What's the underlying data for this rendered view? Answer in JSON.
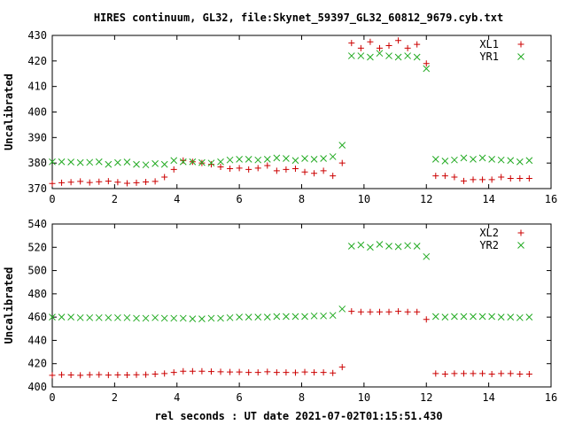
{
  "title": "HIRES continuum, GL32, file:Skynet_59397_GL32_60812_9679.cyb.txt",
  "xlabel": "rel seconds : UT date 2021-07-02T01:15:51.430",
  "colors": {
    "red": "#cc0000",
    "green": "#22aa22",
    "axis": "#000000"
  },
  "chart_data": [
    {
      "type": "scatter",
      "ylabel": "Uncalibrated",
      "xlim": [
        0,
        16
      ],
      "ylim": [
        370,
        430
      ],
      "xticks": [
        0,
        2,
        4,
        6,
        8,
        10,
        12,
        14,
        16
      ],
      "yticks": [
        370,
        380,
        390,
        400,
        410,
        420,
        430
      ],
      "legend": "top-right",
      "series": [
        {
          "name": "XL1",
          "marker": "plus",
          "color": "#cc0000",
          "x": [
            0,
            0.3,
            0.6,
            0.9,
            1.2,
            1.5,
            1.8,
            2.1,
            2.4,
            2.7,
            3.0,
            3.3,
            3.6,
            3.9,
            4.2,
            4.5,
            4.8,
            5.1,
            5.4,
            5.7,
            6.0,
            6.3,
            6.6,
            6.9,
            7.2,
            7.5,
            7.8,
            8.1,
            8.4,
            8.7,
            9.0,
            9.3,
            9.6,
            9.9,
            10.2,
            10.5,
            10.8,
            11.1,
            11.4,
            11.7,
            12.0,
            12.3,
            12.6,
            12.9,
            13.2,
            13.5,
            13.8,
            14.1,
            14.4,
            14.7,
            15.0,
            15.3
          ],
          "y": [
            372,
            372.3,
            372.5,
            372.8,
            372.4,
            372.7,
            372.9,
            372.5,
            372.1,
            372.3,
            372.6,
            372.8,
            374.5,
            377.5,
            381,
            380.5,
            380,
            379.5,
            378.5,
            377.8,
            378,
            377.5,
            378,
            379,
            377,
            377.5,
            377.8,
            376.5,
            376,
            377,
            375,
            380,
            427,
            425,
            427.5,
            425,
            426,
            428,
            425,
            426.5,
            419,
            375,
            375,
            374.5,
            373,
            373.5,
            373.5,
            373.5,
            374.5,
            374,
            374,
            374
          ],
          "legend_label": "XL1"
        },
        {
          "name": "YR1",
          "marker": "cross",
          "color": "#22aa22",
          "x": [
            0,
            0.3,
            0.6,
            0.9,
            1.2,
            1.5,
            1.8,
            2.1,
            2.4,
            2.7,
            3.0,
            3.3,
            3.6,
            3.9,
            4.2,
            4.5,
            4.8,
            5.1,
            5.4,
            5.7,
            6.0,
            6.3,
            6.6,
            6.9,
            7.2,
            7.5,
            7.8,
            8.1,
            8.4,
            8.7,
            9.0,
            9.3,
            9.6,
            9.9,
            10.2,
            10.5,
            10.8,
            11.1,
            11.4,
            11.7,
            12.0,
            12.3,
            12.6,
            12.9,
            13.2,
            13.5,
            13.8,
            14.1,
            14.4,
            14.7,
            15.0,
            15.3
          ],
          "y": [
            380.5,
            380.5,
            380.4,
            380.2,
            380.3,
            380.5,
            379.5,
            380.2,
            380.4,
            379.5,
            379.3,
            379.8,
            379.5,
            381,
            380.5,
            380.5,
            380.2,
            380,
            380.5,
            381.2,
            381.5,
            381.5,
            381.2,
            381.5,
            382,
            381.8,
            381,
            381.8,
            381.5,
            381.8,
            382.5,
            387,
            422,
            422,
            421.5,
            423,
            422,
            421.5,
            422,
            421.5,
            417,
            381.5,
            380.8,
            381.2,
            382,
            381.5,
            382,
            381.5,
            381.2,
            381,
            380.5,
            381
          ]
        }
      ]
    },
    {
      "type": "scatter",
      "ylabel": "Uncalibrated",
      "xlim": [
        0,
        16
      ],
      "ylim": [
        400,
        540
      ],
      "xticks": [
        0,
        2,
        4,
        6,
        8,
        10,
        12,
        14,
        16
      ],
      "yticks": [
        400,
        420,
        440,
        460,
        480,
        500,
        520,
        540
      ],
      "legend": "top-right",
      "series": [
        {
          "name": "XL2",
          "marker": "plus",
          "color": "#cc0000",
          "x": [
            0,
            0.3,
            0.6,
            0.9,
            1.2,
            1.5,
            1.8,
            2.1,
            2.4,
            2.7,
            3.0,
            3.3,
            3.6,
            3.9,
            4.2,
            4.5,
            4.8,
            5.1,
            5.4,
            5.7,
            6.0,
            6.3,
            6.6,
            6.9,
            7.2,
            7.5,
            7.8,
            8.1,
            8.4,
            8.7,
            9.0,
            9.3,
            9.6,
            9.9,
            10.2,
            10.5,
            10.8,
            11.1,
            11.4,
            11.7,
            12.0,
            12.3,
            12.6,
            12.9,
            13.2,
            13.5,
            13.8,
            14.1,
            14.4,
            14.7,
            15.0,
            15.3
          ],
          "y": [
            410,
            410.5,
            410.3,
            410,
            410.5,
            410.6,
            410.2,
            410.4,
            410.3,
            410.5,
            410.6,
            411,
            411.5,
            412.5,
            413.5,
            413.5,
            413.5,
            413.2,
            413,
            412.8,
            412.8,
            412.5,
            412.5,
            413,
            412.5,
            412.5,
            412.3,
            412.8,
            412.5,
            412.5,
            412,
            417,
            465,
            464.5,
            464.5,
            464.5,
            464.5,
            465,
            464.5,
            464.5,
            458,
            411.5,
            411,
            411.5,
            411.5,
            411.5,
            411.5,
            411,
            411.5,
            411.5,
            411,
            411
          ]
        },
        {
          "name": "YR2",
          "marker": "cross",
          "color": "#22aa22",
          "x": [
            0,
            0.3,
            0.6,
            0.9,
            1.2,
            1.5,
            1.8,
            2.1,
            2.4,
            2.7,
            3.0,
            3.3,
            3.6,
            3.9,
            4.2,
            4.5,
            4.8,
            5.1,
            5.4,
            5.7,
            6.0,
            6.3,
            6.6,
            6.9,
            7.2,
            7.5,
            7.8,
            8.1,
            8.4,
            8.7,
            9.0,
            9.3,
            9.6,
            9.9,
            10.2,
            10.5,
            10.8,
            11.1,
            11.4,
            11.7,
            12.0,
            12.3,
            12.6,
            12.9,
            13.2,
            13.5,
            13.8,
            14.1,
            14.4,
            14.7,
            15.0,
            15.3
          ],
          "y": [
            460,
            460,
            460,
            459.5,
            459.5,
            459.5,
            459.5,
            459.5,
            459.5,
            459,
            459,
            459.5,
            459,
            459,
            459,
            458.5,
            458.5,
            459,
            459,
            459.5,
            460,
            460,
            460,
            460,
            460.5,
            460.5,
            460.5,
            460.5,
            461,
            461,
            461.5,
            467,
            521,
            522,
            520,
            522.5,
            521,
            520.5,
            521.5,
            521,
            512,
            460.5,
            460,
            460.5,
            460.5,
            460.5,
            460.5,
            460.5,
            460,
            460,
            459.5,
            460
          ]
        }
      ]
    }
  ]
}
